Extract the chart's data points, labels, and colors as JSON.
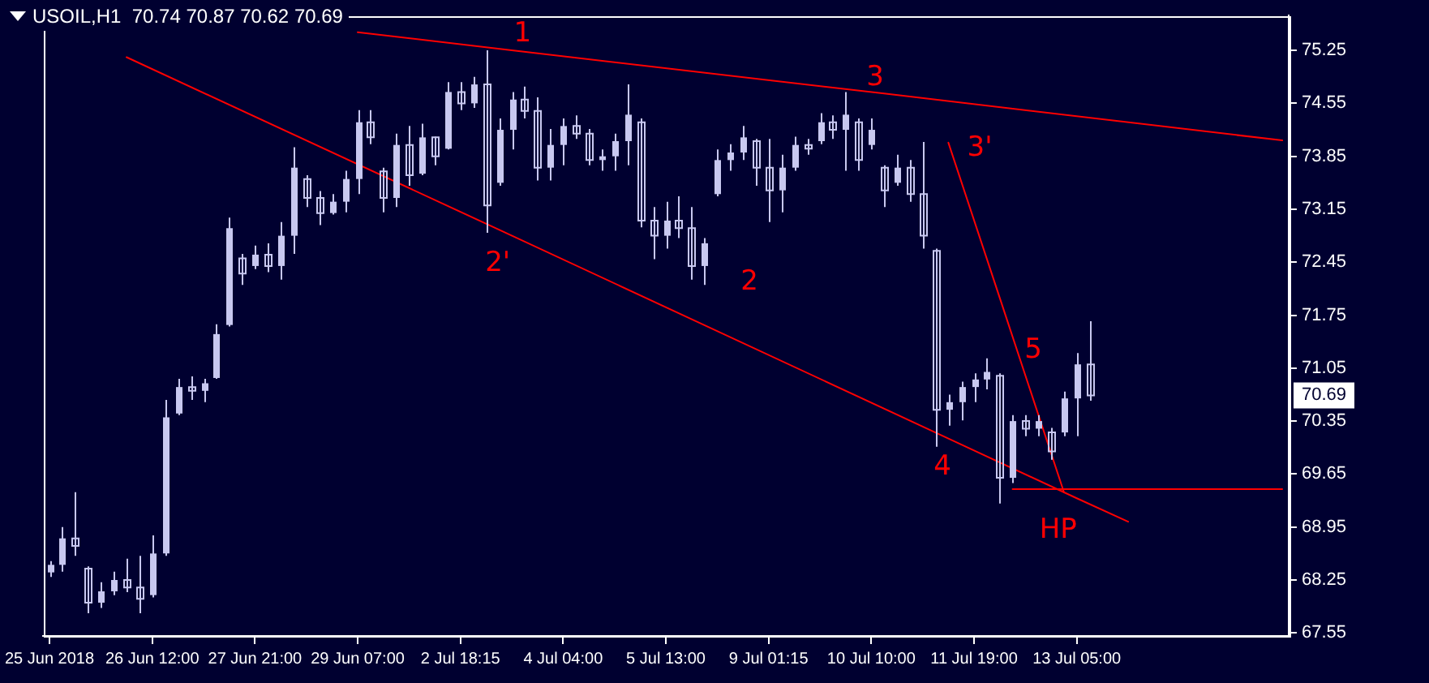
{
  "chart_data": {
    "type": "candlestick",
    "title": "USOIL,H1  70.74 70.87 70.62 70.69",
    "color": "#c8c8f0",
    "categories": [
      "25 Jun 2018",
      null,
      null,
      null,
      null,
      null,
      null,
      null,
      "26 Jun 12:00",
      null,
      null,
      null,
      null,
      null,
      null,
      null,
      "27 Jun 21:00",
      null,
      null,
      null,
      null,
      null,
      null,
      null,
      "29 Jun 07:00",
      null,
      null,
      null,
      null,
      null,
      null,
      null,
      "2 Jul 18:15",
      null,
      null,
      null,
      null,
      null,
      null,
      null,
      "4 Jul 04:00",
      null,
      null,
      null,
      null,
      null,
      null,
      null,
      "5 Jul 13:00",
      null,
      null,
      null,
      null,
      null,
      null,
      null,
      "9 Jul 01:15",
      null,
      null,
      null,
      null,
      null,
      null,
      null,
      "10 Jul 10:00",
      null,
      null,
      null,
      null,
      null,
      null,
      null,
      "11 Jul 19:00",
      null,
      null,
      null,
      null,
      null,
      null,
      null,
      "13 Jul 05:00",
      null,
      null,
      null,
      null,
      null,
      null,
      null,
      null,
      null,
      null,
      null,
      null,
      null,
      null,
      null,
      null
    ],
    "ohlc": [
      [
        68.35,
        68.5,
        68.29,
        68.45
      ],
      [
        68.45,
        68.95,
        68.36,
        68.8
      ],
      [
        68.8,
        69.41,
        68.57,
        68.7
      ],
      [
        68.4,
        68.43,
        67.81,
        67.95
      ],
      [
        67.95,
        68.22,
        67.88,
        68.1
      ],
      [
        68.1,
        68.36,
        68.05,
        68.25
      ],
      [
        68.25,
        68.53,
        68.09,
        68.15
      ],
      [
        68.15,
        68.57,
        67.81,
        68.0
      ],
      [
        68.05,
        68.84,
        68.02,
        68.6
      ],
      [
        68.6,
        70.63,
        68.57,
        70.4
      ],
      [
        70.45,
        70.91,
        70.43,
        70.8
      ],
      [
        70.8,
        70.94,
        70.63,
        70.75
      ],
      [
        70.75,
        70.91,
        70.6,
        70.85
      ],
      [
        70.92,
        71.63,
        70.91,
        71.5
      ],
      [
        71.62,
        73.04,
        71.6,
        72.9
      ],
      [
        72.5,
        72.56,
        72.15,
        72.3
      ],
      [
        72.4,
        72.67,
        72.36,
        72.55
      ],
      [
        72.55,
        72.7,
        72.32,
        72.4
      ],
      [
        72.4,
        72.98,
        72.22,
        72.8
      ],
      [
        72.8,
        73.97,
        72.56,
        73.7
      ],
      [
        73.55,
        73.6,
        73.18,
        73.3
      ],
      [
        73.3,
        73.39,
        72.94,
        73.1
      ],
      [
        73.1,
        73.35,
        73.08,
        73.25
      ],
      [
        73.25,
        73.66,
        73.11,
        73.55
      ],
      [
        73.55,
        74.46,
        73.35,
        74.3
      ],
      [
        74.3,
        74.46,
        74.01,
        74.1
      ],
      [
        73.65,
        73.7,
        73.11,
        73.3
      ],
      [
        73.3,
        74.15,
        73.18,
        74.0
      ],
      [
        74.0,
        74.25,
        73.46,
        73.6
      ],
      [
        73.62,
        74.28,
        73.6,
        74.1
      ],
      [
        74.1,
        74.11,
        73.73,
        73.85
      ],
      [
        73.95,
        74.83,
        73.94,
        74.7
      ],
      [
        74.7,
        74.83,
        74.46,
        74.55
      ],
      [
        74.55,
        74.9,
        74.49,
        74.8
      ],
      [
        74.8,
        75.25,
        72.84,
        73.2
      ],
      [
        73.5,
        74.35,
        73.46,
        74.2
      ],
      [
        74.2,
        74.7,
        73.94,
        74.6
      ],
      [
        74.6,
        74.77,
        74.35,
        74.45
      ],
      [
        74.45,
        74.63,
        73.53,
        73.7
      ],
      [
        73.7,
        74.21,
        73.53,
        74.0
      ],
      [
        74.0,
        74.35,
        73.73,
        74.25
      ],
      [
        74.25,
        74.39,
        74.08,
        74.15
      ],
      [
        74.15,
        74.21,
        73.73,
        73.8
      ],
      [
        73.8,
        73.94,
        73.66,
        73.85
      ],
      [
        73.85,
        74.15,
        73.66,
        74.05
      ],
      [
        74.05,
        74.8,
        73.73,
        74.4
      ],
      [
        74.3,
        74.35,
        72.91,
        73.0
      ],
      [
        73.0,
        73.18,
        72.49,
        72.8
      ],
      [
        72.8,
        73.25,
        72.63,
        73.0
      ],
      [
        73.0,
        73.32,
        72.77,
        72.9
      ],
      [
        72.9,
        73.18,
        72.22,
        72.4
      ],
      [
        72.4,
        72.77,
        72.15,
        72.7
      ],
      [
        73.35,
        73.94,
        73.32,
        73.8
      ],
      [
        73.8,
        74.01,
        73.66,
        73.9
      ],
      [
        73.9,
        74.25,
        73.8,
        74.1
      ],
      [
        74.05,
        74.08,
        73.46,
        73.7
      ],
      [
        73.7,
        74.08,
        72.98,
        73.4
      ],
      [
        73.4,
        73.87,
        73.11,
        73.7
      ],
      [
        73.7,
        74.11,
        73.66,
        74.0
      ],
      [
        74.0,
        74.08,
        73.87,
        73.95
      ],
      [
        74.05,
        74.42,
        74.01,
        74.3
      ],
      [
        74.3,
        74.39,
        74.08,
        74.2
      ],
      [
        74.2,
        74.7,
        73.66,
        74.4
      ],
      [
        74.3,
        74.35,
        73.66,
        73.8
      ],
      [
        74.0,
        74.35,
        73.94,
        74.2
      ],
      [
        73.7,
        73.73,
        73.18,
        73.4
      ],
      [
        73.5,
        73.87,
        73.46,
        73.7
      ],
      [
        73.7,
        73.8,
        73.25,
        73.35
      ],
      [
        73.35,
        74.04,
        72.63,
        72.8
      ],
      [
        72.6,
        72.63,
        70.01,
        70.5
      ],
      [
        70.5,
        70.7,
        70.29,
        70.6
      ],
      [
        70.6,
        70.87,
        70.36,
        70.8
      ],
      [
        70.8,
        70.98,
        70.6,
        70.9
      ],
      [
        70.9,
        71.18,
        70.77,
        71.0
      ],
      [
        70.95,
        70.98,
        69.26,
        69.6
      ],
      [
        69.6,
        70.43,
        69.53,
        70.35
      ],
      [
        70.35,
        70.43,
        70.15,
        70.25
      ],
      [
        70.25,
        70.43,
        70.15,
        70.35
      ],
      [
        70.2,
        70.26,
        69.84,
        69.95
      ],
      [
        70.2,
        70.74,
        70.15,
        70.65
      ],
      [
        70.65,
        71.25,
        70.15,
        71.1
      ],
      [
        71.1,
        71.67,
        70.62,
        70.69
      ],
      null,
      null,
      null,
      null,
      null,
      null,
      null,
      null,
      null,
      null,
      null,
      null,
      null,
      null,
      null
    ],
    "series": [
      {
        "type": "line",
        "color": "#ff0000",
        "values": [
          null,
          null,
          null,
          null,
          null,
          null,
          null,
          null,
          null,
          null,
          null,
          null,
          null,
          null,
          null,
          null,
          null,
          null,
          null,
          null,
          null,
          null,
          null,
          null,
          75.49,
          null,
          null,
          null,
          null,
          null,
          null,
          null,
          null,
          null,
          null,
          null,
          75.25,
          null,
          null,
          null,
          null,
          null,
          null,
          null,
          null,
          null,
          null,
          null,
          null,
          null,
          null,
          null,
          null,
          null,
          null,
          null,
          null,
          null,
          null,
          null,
          null,
          null,
          null,
          null,
          null,
          74.68,
          null,
          null,
          null,
          null,
          null,
          null,
          null,
          null,
          null,
          null,
          null,
          null,
          null,
          null,
          null,
          null,
          null,
          null,
          null,
          null,
          null,
          null,
          null,
          null,
          null,
          null,
          null,
          null,
          null,
          null,
          74.06
        ]
      },
      {
        "type": "line",
        "color": "#ff0000",
        "values": [
          null,
          null,
          null,
          null,
          null,
          null,
          75.16,
          null,
          null,
          null,
          null,
          null,
          null,
          null,
          null,
          null,
          null,
          null,
          null,
          null,
          null,
          null,
          null,
          null,
          null,
          null,
          null,
          null,
          null,
          null,
          null,
          null,
          null,
          null,
          null,
          72.88,
          null,
          null,
          null,
          null,
          null,
          null,
          null,
          null,
          null,
          null,
          null,
          null,
          null,
          null,
          null,
          null,
          null,
          null,
          null,
          null,
          null,
          null,
          null,
          null,
          null,
          null,
          null,
          null,
          null,
          null,
          null,
          null,
          null,
          null,
          70.12,
          null,
          null,
          null,
          null,
          null,
          null,
          null,
          null,
          null,
          69.33,
          null,
          null,
          null,
          69.02,
          null,
          null,
          null,
          null,
          null,
          null,
          null,
          null,
          null,
          null,
          null,
          null
        ]
      },
      {
        "type": "line",
        "color": "#ff0000",
        "values": [
          null,
          null,
          null,
          null,
          null,
          null,
          null,
          null,
          null,
          null,
          null,
          null,
          null,
          null,
          null,
          null,
          null,
          null,
          null,
          null,
          null,
          null,
          null,
          null,
          null,
          null,
          null,
          null,
          null,
          null,
          null,
          null,
          null,
          null,
          null,
          null,
          null,
          null,
          null,
          null,
          null,
          null,
          null,
          null,
          null,
          null,
          null,
          null,
          null,
          null,
          null,
          null,
          null,
          null,
          null,
          null,
          null,
          null,
          null,
          null,
          null,
          null,
          null,
          null,
          null,
          null,
          null,
          null,
          null,
          null,
          74.03,
          null,
          null,
          null,
          71.98,
          null,
          null,
          null,
          null,
          69.41,
          null,
          null,
          null,
          null,
          null,
          null,
          null,
          null,
          null,
          null,
          null,
          null,
          null,
          null,
          null,
          null,
          null
        ]
      },
      {
        "type": "line",
        "color": "#ff0000",
        "values": [
          null,
          null,
          null,
          null,
          null,
          null,
          null,
          null,
          null,
          null,
          null,
          null,
          null,
          null,
          null,
          null,
          null,
          null,
          null,
          null,
          null,
          null,
          null,
          null,
          null,
          null,
          null,
          null,
          null,
          null,
          null,
          null,
          null,
          null,
          null,
          null,
          null,
          null,
          null,
          null,
          null,
          null,
          null,
          null,
          null,
          null,
          null,
          null,
          null,
          null,
          null,
          null,
          null,
          null,
          null,
          null,
          null,
          null,
          null,
          null,
          null,
          null,
          null,
          null,
          null,
          null,
          null,
          null,
          null,
          null,
          null,
          null,
          null,
          null,
          null,
          69.45,
          null,
          null,
          null,
          null,
          null,
          null,
          null,
          null,
          null,
          null,
          null,
          null,
          null,
          null,
          null,
          null,
          null,
          null,
          null,
          null,
          69.45
        ]
      }
    ],
    "ylim": [
      67.51,
      75.71
    ],
    "yticks": [
      67.55,
      68.25,
      68.95,
      69.65,
      70.35,
      71.05,
      71.75,
      72.45,
      73.15,
      73.85,
      74.55,
      75.25
    ],
    "annotations": [
      "1",
      "2'",
      "2",
      "3",
      "3'",
      "4",
      "5",
      "HP",
      {
        "text": "70.69",
        "y": 70.69
      }
    ],
    "legend": false
  }
}
